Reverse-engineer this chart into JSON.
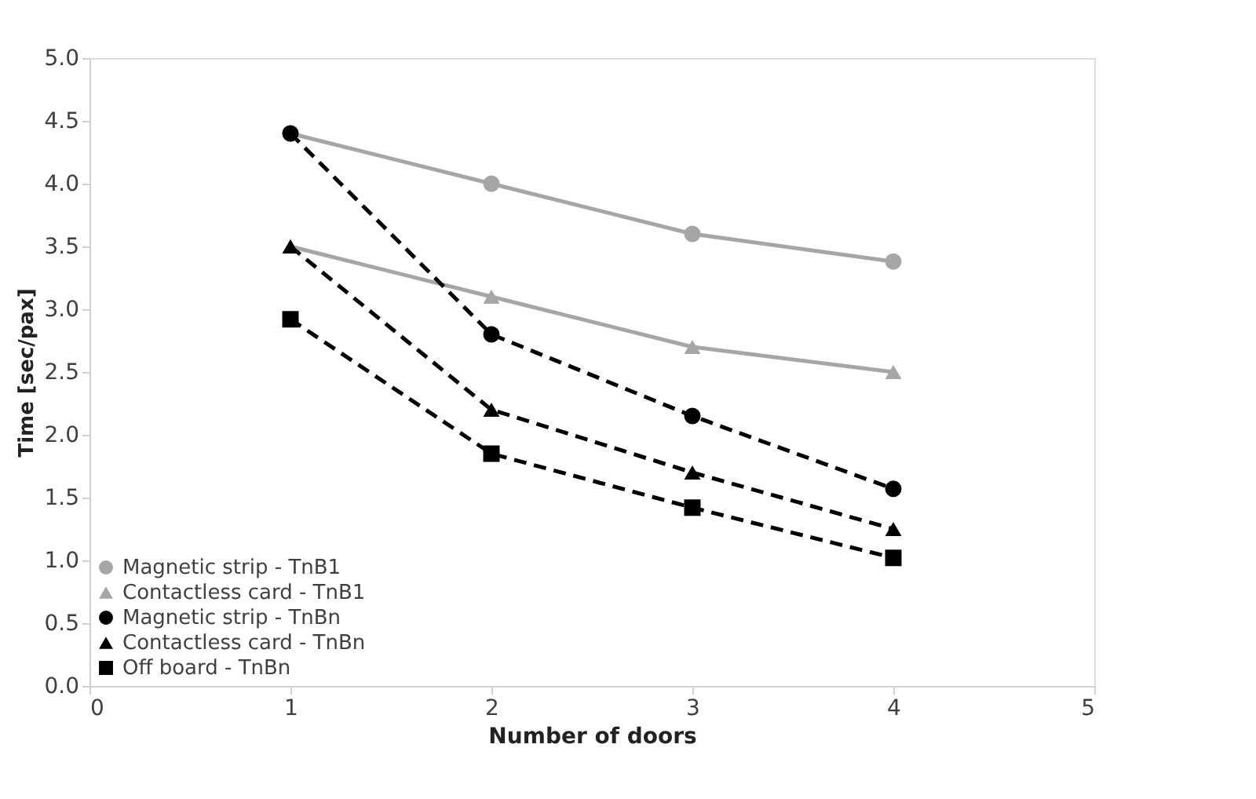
{
  "chart_data": {
    "type": "line",
    "xlabel": "Number of doors",
    "ylabel": "Time [sec/pax]",
    "x": [
      1,
      2,
      3,
      4
    ],
    "xlim": [
      0,
      5
    ],
    "xticks": [
      0,
      1,
      2,
      3,
      4,
      5
    ],
    "ylim": [
      0,
      5
    ],
    "yticks": [
      {
        "value": 0,
        "label": "0.0"
      },
      {
        "value": 0.5,
        "label": "0.5"
      },
      {
        "value": 1,
        "label": "1.0"
      },
      {
        "value": 1.5,
        "label": "1.5"
      },
      {
        "value": 2,
        "label": "2.0"
      },
      {
        "value": 2.5,
        "label": "2.5"
      },
      {
        "value": 3,
        "label": "3.0"
      },
      {
        "value": 3.5,
        "label": "3.5"
      },
      {
        "value": 4,
        "label": "4.0"
      },
      {
        "value": 4.5,
        "label": "4.5"
      },
      {
        "value": 5,
        "label": "5.0"
      }
    ],
    "grid": false,
    "legend": "bottom left",
    "series": [
      {
        "name": "Magnetic strip - TnB1",
        "color": "#a6a6a6",
        "marker": "circle",
        "line_style": "solid",
        "values": [
          4.4,
          4.0,
          3.6,
          3.38
        ]
      },
      {
        "name": "Contactless card - TnB1",
        "color": "#a6a6a6",
        "marker": "triangle",
        "line_style": "solid",
        "values": [
          3.5,
          3.1,
          2.7,
          2.5
        ]
      },
      {
        "name": "Magnetic strip - TnBn",
        "color": "#000000",
        "marker": "circle",
        "line_style": "dashed",
        "values": [
          4.4,
          2.8,
          2.15,
          1.57
        ]
      },
      {
        "name": "Contactless card -  TnBn",
        "color": "#000000",
        "marker": "triangle",
        "line_style": "dashed",
        "values": [
          3.5,
          2.2,
          1.7,
          1.25
        ]
      },
      {
        "name": "Off board -  TnBn",
        "color": "#000000",
        "marker": "square",
        "line_style": "dashed",
        "values": [
          2.92,
          1.85,
          1.42,
          1.02
        ]
      }
    ]
  }
}
